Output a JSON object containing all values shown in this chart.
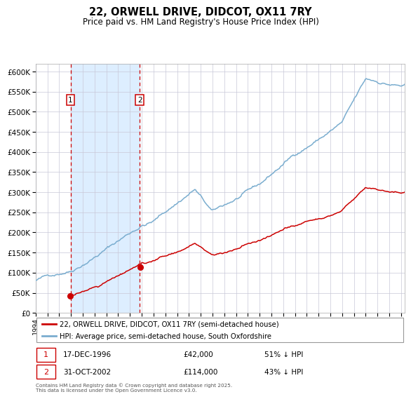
{
  "title": "22, ORWELL DRIVE, DIDCOT, OX11 7RY",
  "subtitle": "Price paid vs. HM Land Registry's House Price Index (HPI)",
  "legend_line1": "22, ORWELL DRIVE, DIDCOT, OX11 7RY (semi-detached house)",
  "legend_line2": "HPI: Average price, semi-detached house, South Oxfordshire",
  "transaction1_date": "17-DEC-1996",
  "transaction1_price": 42000,
  "transaction1_label": "£42,000",
  "transaction1_hpi": "51% ↓ HPI",
  "transaction2_date": "31-OCT-2002",
  "transaction2_price": 114000,
  "transaction2_label": "£114,000",
  "transaction2_hpi": "43% ↓ HPI",
  "footnote": "Contains HM Land Registry data © Crown copyright and database right 2025.\nThis data is licensed under the Open Government Licence v3.0.",
  "red_color": "#cc0000",
  "blue_color": "#7aadcf",
  "shade_color": "#ddeeff",
  "grid_color": "#c8c8d8",
  "background_color": "#ffffff",
  "ylim_max": 620000,
  "ytick_step": 50000,
  "transaction1_x": 1996.96,
  "transaction2_x": 2002.83,
  "xmin": 1994.0,
  "xmax": 2025.3
}
